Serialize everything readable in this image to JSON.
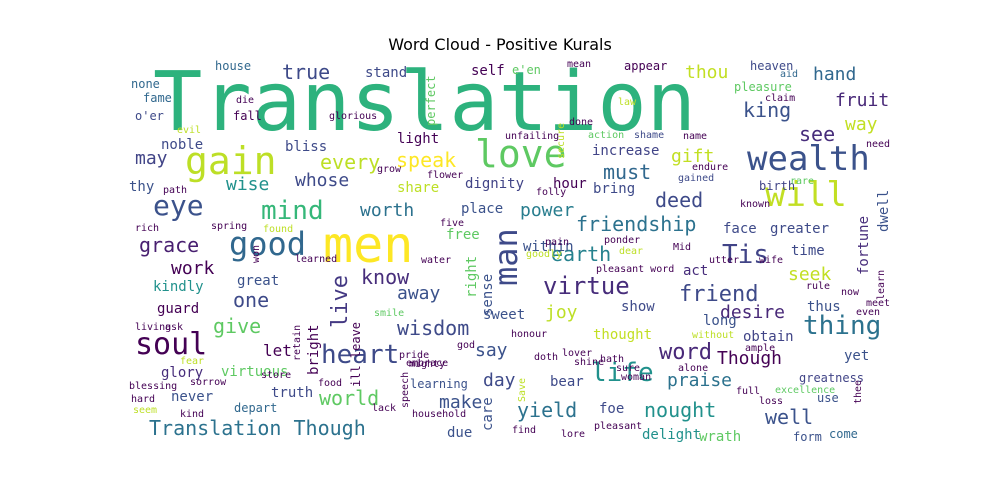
{
  "chart_data": {
    "type": "wordcloud",
    "title": "Word Cloud - Positive Kurals",
    "words": [
      {
        "text": "Translation",
        "size": 82,
        "color": "#2db27d"
      },
      {
        "text": "men",
        "size": 50,
        "color": "#fde725"
      },
      {
        "text": "love",
        "size": 38,
        "color": "#5ec962"
      },
      {
        "text": "gain",
        "size": 38,
        "color": "#bddf26"
      },
      {
        "text": "wealth",
        "size": 34,
        "color": "#3b528b"
      },
      {
        "text": "will",
        "size": 34,
        "color": "#c2df23"
      },
      {
        "text": "good",
        "size": 32,
        "color": "#31688e"
      },
      {
        "text": "man",
        "size": 32,
        "color": "#3e4a89"
      },
      {
        "text": "soul",
        "size": 30,
        "color": "#440154"
      },
      {
        "text": "eye",
        "size": 28,
        "color": "#3b528b"
      },
      {
        "text": "mind",
        "size": 26,
        "color": "#35b779"
      },
      {
        "text": "life",
        "size": 26,
        "color": "#21918c"
      },
      {
        "text": "heart",
        "size": 26,
        "color": "#3e4a89"
      },
      {
        "text": "thing",
        "size": 26,
        "color": "#2c728e"
      },
      {
        "text": "Tis",
        "size": 26,
        "color": "#414487"
      },
      {
        "text": "virtue",
        "size": 24,
        "color": "#472d7b"
      },
      {
        "text": "word",
        "size": 22,
        "color": "#482878"
      },
      {
        "text": "friend",
        "size": 22,
        "color": "#3e4a89"
      },
      {
        "text": "live",
        "size": 22,
        "color": "#443983"
      },
      {
        "text": "friendship",
        "size": 20,
        "color": "#2c728e"
      },
      {
        "text": "Translation Though",
        "size": 20,
        "color": "#2c728e"
      },
      {
        "text": "deed",
        "size": 20,
        "color": "#3e4a89"
      },
      {
        "text": "grace",
        "size": 20,
        "color": "#481f70"
      },
      {
        "text": "one",
        "size": 20,
        "color": "#3e4a89"
      },
      {
        "text": "give",
        "size": 20,
        "color": "#5ec962"
      },
      {
        "text": "wisdom",
        "size": 20,
        "color": "#3e4a89"
      },
      {
        "text": "nought",
        "size": 20,
        "color": "#21918c"
      },
      {
        "text": "yield",
        "size": 20,
        "color": "#2c728e"
      },
      {
        "text": "well",
        "size": 20,
        "color": "#3b528b"
      },
      {
        "text": "world",
        "size": 20,
        "color": "#5ec962"
      },
      {
        "text": "speak",
        "size": 20,
        "color": "#fde725"
      },
      {
        "text": "every",
        "size": 20,
        "color": "#bddf26"
      },
      {
        "text": "must",
        "size": 20,
        "color": "#31688e"
      },
      {
        "text": "king",
        "size": 20,
        "color": "#3b528b"
      },
      {
        "text": "see",
        "size": 20,
        "color": "#472d7b"
      },
      {
        "text": "true",
        "size": 20,
        "color": "#3e4a89"
      },
      {
        "text": "earth",
        "size": 20,
        "color": "#26828e"
      },
      {
        "text": "know",
        "size": 20,
        "color": "#472d7b"
      },
      {
        "text": "worth",
        "size": 18,
        "color": "#2c728e"
      },
      {
        "text": "power",
        "size": 18,
        "color": "#287d8e"
      },
      {
        "text": "desire",
        "size": 18,
        "color": "#482878"
      },
      {
        "text": "away",
        "size": 18,
        "color": "#3b528b"
      },
      {
        "text": "joy",
        "size": 18,
        "color": "#bddf26"
      },
      {
        "text": "say",
        "size": 18,
        "color": "#3b528b"
      },
      {
        "text": "day",
        "size": 18,
        "color": "#3e4a89"
      },
      {
        "text": "make",
        "size": 18,
        "color": "#3b528b"
      },
      {
        "text": "Though",
        "size": 18,
        "color": "#440154"
      },
      {
        "text": "praise",
        "size": 18,
        "color": "#2c728e"
      },
      {
        "text": "hand",
        "size": 18,
        "color": "#31688e"
      },
      {
        "text": "fruit",
        "size": 18,
        "color": "#482878"
      },
      {
        "text": "way",
        "size": 18,
        "color": "#c2df23"
      },
      {
        "text": "gift",
        "size": 18,
        "color": "#c2df23"
      },
      {
        "text": "thou",
        "size": 18,
        "color": "#c2df23"
      },
      {
        "text": "may",
        "size": 18,
        "color": "#414487"
      },
      {
        "text": "wise",
        "size": 18,
        "color": "#21918c"
      },
      {
        "text": "whose",
        "size": 18,
        "color": "#3e4a89"
      },
      {
        "text": "work",
        "size": 18,
        "color": "#440154"
      },
      {
        "text": "seek",
        "size": 18,
        "color": "#c2df23"
      },
      {
        "text": "let",
        "size": 16,
        "color": "#440154"
      },
      {
        "text": "kindly",
        "size": 14,
        "color": "#21918c"
      },
      {
        "text": "guard",
        "size": 14,
        "color": "#440154"
      },
      {
        "text": "glory",
        "size": 14,
        "color": "#472d7b"
      },
      {
        "text": "never",
        "size": 14,
        "color": "#3b528b"
      },
      {
        "text": "virtuous",
        "size": 14,
        "color": "#5ec962"
      },
      {
        "text": "great",
        "size": 14,
        "color": "#3b528b"
      },
      {
        "text": "fortune",
        "size": 14,
        "color": "#472d7b"
      },
      {
        "text": "dwell",
        "size": 14,
        "color": "#3b528b"
      },
      {
        "text": "face",
        "size": 14,
        "color": "#3e4a89"
      },
      {
        "text": "greater",
        "size": 14,
        "color": "#3e4a89"
      },
      {
        "text": "time",
        "size": 14,
        "color": "#3e4a89"
      },
      {
        "text": "thus",
        "size": 14,
        "color": "#3b528b"
      },
      {
        "text": "obtain",
        "size": 14,
        "color": "#414487"
      },
      {
        "text": "yet",
        "size": 14,
        "color": "#3b528b"
      },
      {
        "text": "show",
        "size": 14,
        "color": "#3e4a89"
      },
      {
        "text": "thought",
        "size": 14,
        "color": "#c2df23"
      },
      {
        "text": "long",
        "size": 14,
        "color": "#3b528b"
      },
      {
        "text": "act",
        "size": 14,
        "color": "#472d7b"
      },
      {
        "text": "bear",
        "size": 14,
        "color": "#3e4a89"
      },
      {
        "text": "foe",
        "size": 14,
        "color": "#3e4a89"
      },
      {
        "text": "delight",
        "size": 14,
        "color": "#21918c"
      },
      {
        "text": "wrath",
        "size": 14,
        "color": "#5ec962"
      },
      {
        "text": "care",
        "size": 14,
        "color": "#3b528b"
      },
      {
        "text": "due",
        "size": 14,
        "color": "#3b528b"
      },
      {
        "text": "truth",
        "size": 14,
        "color": "#3e4a89"
      },
      {
        "text": "depart",
        "size": 12,
        "color": "#31688e"
      },
      {
        "text": "sweet",
        "size": 14,
        "color": "#3b528b"
      },
      {
        "text": "sense",
        "size": 14,
        "color": "#3b528b"
      },
      {
        "text": "right",
        "size": 14,
        "color": "#5ec962"
      },
      {
        "text": "free",
        "size": 14,
        "color": "#5ec962"
      },
      {
        "text": "place",
        "size": 14,
        "color": "#3b528b"
      },
      {
        "text": "within",
        "size": 14,
        "color": "#3b528b"
      },
      {
        "text": "dignity",
        "size": 14,
        "color": "#414487"
      },
      {
        "text": "share",
        "size": 14,
        "color": "#bddf26"
      },
      {
        "text": "hour",
        "size": 14,
        "color": "#440154"
      },
      {
        "text": "bring",
        "size": 14,
        "color": "#3e4a89"
      },
      {
        "text": "increase",
        "size": 14,
        "color": "#414487"
      },
      {
        "text": "light",
        "size": 14,
        "color": "#440154"
      },
      {
        "text": "bliss",
        "size": 14,
        "color": "#3e4a89"
      },
      {
        "text": "noble",
        "size": 14,
        "color": "#3e4a89"
      },
      {
        "text": "thy",
        "size": 14,
        "color": "#3b528b"
      },
      {
        "text": "self",
        "size": 14,
        "color": "#440154"
      },
      {
        "text": "stand",
        "size": 14,
        "color": "#3e4a89"
      },
      {
        "text": "none",
        "size": 12,
        "color": "#31688e"
      },
      {
        "text": "fame",
        "size": 12,
        "color": "#31688e"
      },
      {
        "text": "house",
        "size": 12,
        "color": "#31688e"
      },
      {
        "text": "birth",
        "size": 12,
        "color": "#414487"
      },
      {
        "text": "learning",
        "size": 12,
        "color": "#3b528b"
      },
      {
        "text": "greatness",
        "size": 12,
        "color": "#414487"
      },
      {
        "text": "excellence",
        "size": 10,
        "color": "#5ec962"
      },
      {
        "text": "use",
        "size": 12,
        "color": "#3b528b"
      },
      {
        "text": "come",
        "size": 12,
        "color": "#31688e"
      },
      {
        "text": "form",
        "size": 12,
        "color": "#3b528b"
      },
      {
        "text": "heaven",
        "size": 12,
        "color": "#3e4a89"
      },
      {
        "text": "appear",
        "size": 12,
        "color": "#440154"
      },
      {
        "text": "pleasure",
        "size": 12,
        "color": "#5ec962"
      },
      {
        "text": "e'en",
        "size": 12,
        "color": "#5ec962"
      },
      {
        "text": "perfect",
        "size": 12,
        "color": "#5ec962"
      },
      {
        "text": "o'er",
        "size": 12,
        "color": "#3e4a89"
      },
      {
        "text": "fall",
        "size": 12,
        "color": "#440154"
      },
      {
        "text": "die",
        "size": 10,
        "color": "#440154"
      },
      {
        "text": "aid",
        "size": 10,
        "color": "#31688e"
      },
      {
        "text": "claim",
        "size": 10,
        "color": "#440154"
      },
      {
        "text": "mean",
        "size": 10,
        "color": "#440154"
      },
      {
        "text": "rare",
        "size": 10,
        "color": "#5ec962"
      },
      {
        "text": "endure",
        "size": 10,
        "color": "#440154"
      },
      {
        "text": "gained",
        "size": 10,
        "color": "#3e4a89"
      },
      {
        "text": "known",
        "size": 10,
        "color": "#440154"
      },
      {
        "text": "wife",
        "size": 10,
        "color": "#440154"
      },
      {
        "text": "shame",
        "size": 10,
        "color": "#3e4a89"
      },
      {
        "text": "name",
        "size": 10,
        "color": "#440154"
      },
      {
        "text": "need",
        "size": 10,
        "color": "#440154"
      },
      {
        "text": "unfailing",
        "size": 10,
        "color": "#440154"
      },
      {
        "text": "glorious",
        "size": 10,
        "color": "#440154"
      },
      {
        "text": "flower",
        "size": 10,
        "color": "#440154"
      },
      {
        "text": "grow",
        "size": 10,
        "color": "#440154"
      },
      {
        "text": "folly",
        "size": 10,
        "color": "#440154"
      },
      {
        "text": "five",
        "size": 10,
        "color": "#440154"
      },
      {
        "text": "pain",
        "size": 10,
        "color": "#440154"
      },
      {
        "text": "spring",
        "size": 10,
        "color": "#440154"
      },
      {
        "text": "rich",
        "size": 10,
        "color": "#440154"
      },
      {
        "text": "water",
        "size": 10,
        "color": "#440154"
      },
      {
        "text": "utter",
        "size": 10,
        "color": "#440154"
      },
      {
        "text": "learned",
        "size": 10,
        "color": "#440154"
      },
      {
        "text": "ask",
        "size": 10,
        "color": "#440154"
      },
      {
        "text": "living",
        "size": 10,
        "color": "#440154"
      },
      {
        "text": "blessing",
        "size": 10,
        "color": "#440154"
      },
      {
        "text": "sorrow",
        "size": 10,
        "color": "#440154"
      },
      {
        "text": "hard",
        "size": 10,
        "color": "#440154"
      },
      {
        "text": "seem",
        "size": 10,
        "color": "#bddf26"
      },
      {
        "text": "kind",
        "size": 10,
        "color": "#440154"
      },
      {
        "text": "store",
        "size": 10,
        "color": "#440154"
      },
      {
        "text": "food",
        "size": 10,
        "color": "#440154"
      },
      {
        "text": "embrace",
        "size": 10,
        "color": "#440154"
      },
      {
        "text": "household",
        "size": 10,
        "color": "#440154"
      },
      {
        "text": "honour",
        "size": 10,
        "color": "#440154"
      },
      {
        "text": "smile",
        "size": 10,
        "color": "#5ec962"
      },
      {
        "text": "shine",
        "size": 10,
        "color": "#440154"
      },
      {
        "text": "doth",
        "size": 10,
        "color": "#440154"
      },
      {
        "text": "hath",
        "size": 10,
        "color": "#440154"
      },
      {
        "text": "lover",
        "size": 10,
        "color": "#440154"
      },
      {
        "text": "alone",
        "size": 10,
        "color": "#440154"
      },
      {
        "text": "full",
        "size": 10,
        "color": "#440154"
      },
      {
        "text": "loss",
        "size": 10,
        "color": "#440154"
      },
      {
        "text": "find",
        "size": 10,
        "color": "#440154"
      },
      {
        "text": "lore",
        "size": 10,
        "color": "#440154"
      },
      {
        "text": "pleasant",
        "size": 10,
        "color": "#440154"
      },
      {
        "text": "pleasant word",
        "size": 10,
        "color": "#440154"
      },
      {
        "text": "rule",
        "size": 10,
        "color": "#440154"
      },
      {
        "text": "now",
        "size": 10,
        "color": "#440154"
      },
      {
        "text": "meet",
        "size": 10,
        "color": "#440154"
      },
      {
        "text": "even",
        "size": 10,
        "color": "#440154"
      },
      {
        "text": "learn",
        "size": 10,
        "color": "#440154"
      },
      {
        "text": "thee",
        "size": 10,
        "color": "#440154"
      },
      {
        "text": "without",
        "size": 10,
        "color": "#bddf26"
      },
      {
        "text": "ample",
        "size": 10,
        "color": "#440154"
      },
      {
        "text": "Mid",
        "size": 10,
        "color": "#440154"
      },
      {
        "text": "ponder",
        "size": 10,
        "color": "#440154"
      },
      {
        "text": "goodly",
        "size": 10,
        "color": "#bddf26"
      },
      {
        "text": "mighty",
        "size": 10,
        "color": "#440154"
      },
      {
        "text": "god",
        "size": 10,
        "color": "#440154"
      },
      {
        "text": "woman",
        "size": 10,
        "color": "#440154"
      },
      {
        "text": "sure",
        "size": 10,
        "color": "#440154"
      },
      {
        "text": "lack",
        "size": 10,
        "color": "#440154"
      },
      {
        "text": "speech",
        "size": 10,
        "color": "#440154"
      },
      {
        "text": "Save",
        "size": 10,
        "color": "#bddf26"
      },
      {
        "text": "dear",
        "size": 10,
        "color": "#bddf26"
      },
      {
        "text": "evil",
        "size": 10,
        "color": "#bddf26"
      },
      {
        "text": "pride",
        "size": 10,
        "color": "#440154"
      },
      {
        "text": "won",
        "size": 10,
        "color": "#440154"
      },
      {
        "text": "found",
        "size": 10,
        "color": "#bddf26"
      },
      {
        "text": "law",
        "size": 10,
        "color": "#bddf26"
      },
      {
        "text": "done",
        "size": 10,
        "color": "#440154"
      },
      {
        "text": "action",
        "size": 10,
        "color": "#5ec962"
      },
      {
        "text": "secure",
        "size": 10,
        "color": "#bddf26"
      },
      {
        "text": "path",
        "size": 10,
        "color": "#440154"
      },
      {
        "text": "retain",
        "size": 10,
        "color": "#440154"
      },
      {
        "text": "bright",
        "size": 14,
        "color": "#440154"
      },
      {
        "text": "ill leave",
        "size": 12,
        "color": "#440154"
      },
      {
        "text": "fear",
        "size": 10,
        "color": "#bddf26"
      }
    ]
  },
  "layout_note": ""
}
